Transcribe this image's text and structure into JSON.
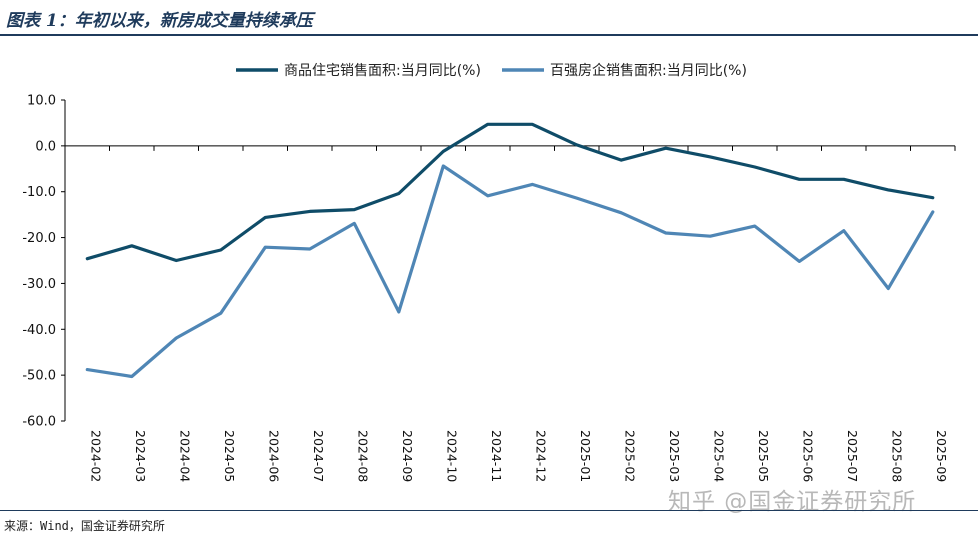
{
  "header": {
    "title": "图表 1：年初以来，新房成交量持续承压"
  },
  "footer": {
    "source": "来源：Wind，国金证券研究所"
  },
  "watermark": {
    "text": "知乎 @国金证券研究所"
  },
  "colors": {
    "series1": "#0f4c68",
    "series2": "#4f86b5",
    "axis": "#000000",
    "frame": "#1f3b5c"
  },
  "chart_data": {
    "type": "line",
    "x": [
      "2024-02",
      "2024-03",
      "2024-04",
      "2024-05",
      "2024-06",
      "2024-07",
      "2024-08",
      "2024-09",
      "2024-10",
      "2024-11",
      "2024-12",
      "2025-01",
      "2025-02",
      "2025-03",
      "2025-04",
      "2025-05",
      "2025-06",
      "2025-07",
      "2025-08",
      "2025-09"
    ],
    "series": [
      {
        "name": "商品住宅销售面积:当月同比(%)",
        "values": [
          -24.6,
          -21.8,
          -25.0,
          -22.7,
          -15.6,
          -14.3,
          -13.9,
          -10.4,
          -1.2,
          4.7,
          4.7,
          0.2,
          -3.1,
          -0.5,
          -2.4,
          -4.6,
          -7.3,
          -7.3,
          -9.6,
          -11.3
        ]
      },
      {
        "name": "百强房企销售面积:当月同比(%)",
        "values": [
          -48.8,
          -50.3,
          -41.9,
          -36.5,
          -22.1,
          -22.5,
          -16.9,
          -36.2,
          -4.4,
          -10.9,
          -8.4,
          -11.4,
          -14.6,
          -19.0,
          -19.7,
          -17.5,
          -25.2,
          -18.5,
          -31.1,
          -14.4
        ]
      }
    ],
    "ylim": [
      -60,
      10
    ],
    "yticks": [
      "10.0",
      "0.0",
      "-10.0",
      "-20.0",
      "-30.0",
      "-40.0",
      "-50.0",
      "-60.0"
    ],
    "grid": false,
    "legend": "top"
  }
}
